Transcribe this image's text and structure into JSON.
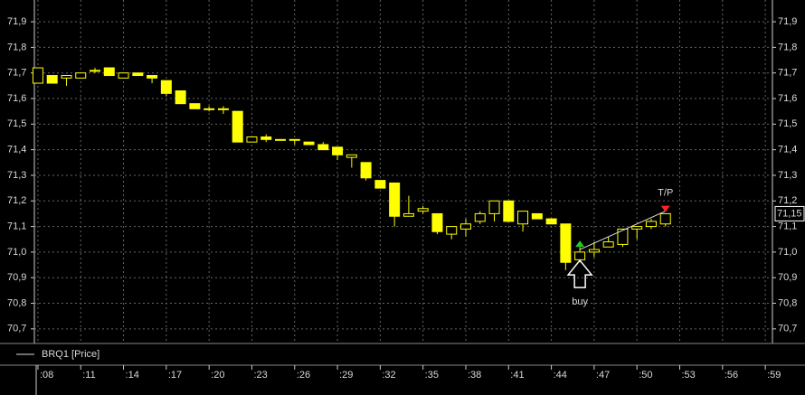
{
  "chart_data": {
    "type": "candlestick",
    "legend": "BRQ1 [Price]",
    "x": [
      8,
      9,
      10,
      11,
      12,
      13,
      14,
      15,
      16,
      17,
      18,
      19,
      20,
      21,
      22,
      23,
      24,
      25,
      26,
      27,
      28,
      29,
      30,
      31,
      32,
      33,
      34,
      35,
      36,
      37,
      38,
      39,
      40,
      41,
      42,
      43,
      44,
      45,
      46,
      47,
      48,
      49,
      50,
      51,
      52
    ],
    "open": [
      71.66,
      71.69,
      71.68,
      71.68,
      71.71,
      71.72,
      71.68,
      71.7,
      71.69,
      71.67,
      71.63,
      71.58,
      71.56,
      71.56,
      71.55,
      71.43,
      71.45,
      71.44,
      71.44,
      71.43,
      71.42,
      71.41,
      71.37,
      71.35,
      71.28,
      71.27,
      71.14,
      71.16,
      71.15,
      71.07,
      71.09,
      71.12,
      71.15,
      71.2,
      71.11,
      71.15,
      71.13,
      71.11,
      70.97,
      71.0,
      71.02,
      71.03,
      71.09,
      71.1,
      71.11
    ],
    "high": [
      71.72,
      71.69,
      71.69,
      71.7,
      71.72,
      71.72,
      71.7,
      71.7,
      71.69,
      71.67,
      71.63,
      71.58,
      71.57,
      71.57,
      71.55,
      71.45,
      71.46,
      71.44,
      71.44,
      71.43,
      71.43,
      71.41,
      71.38,
      71.35,
      71.28,
      71.27,
      71.22,
      71.18,
      71.15,
      71.1,
      71.13,
      71.16,
      71.2,
      71.2,
      71.16,
      71.15,
      71.13,
      71.11,
      71.02,
      71.04,
      71.06,
      71.09,
      71.1,
      71.13,
      71.15
    ],
    "low": [
      71.66,
      71.66,
      71.65,
      71.68,
      71.7,
      71.69,
      71.68,
      71.69,
      71.66,
      71.61,
      71.58,
      71.56,
      71.55,
      71.54,
      71.43,
      71.43,
      71.43,
      71.44,
      71.42,
      71.42,
      71.4,
      71.36,
      71.33,
      71.28,
      71.25,
      71.1,
      71.14,
      71.15,
      71.07,
      71.05,
      71.06,
      71.11,
      71.12,
      71.12,
      71.08,
      71.13,
      71.11,
      70.93,
      70.96,
      70.98,
      71.02,
      71.02,
      71.05,
      71.09,
      71.1
    ],
    "close": [
      71.72,
      71.66,
      71.69,
      71.7,
      71.71,
      71.69,
      71.7,
      71.69,
      71.68,
      71.62,
      71.58,
      71.56,
      71.56,
      71.56,
      71.43,
      71.45,
      71.44,
      71.44,
      71.44,
      71.42,
      71.4,
      71.38,
      71.38,
      71.29,
      71.25,
      71.14,
      71.15,
      71.17,
      71.08,
      71.1,
      71.11,
      71.15,
      71.2,
      71.12,
      71.16,
      71.13,
      71.11,
      70.96,
      71.0,
      71.01,
      71.04,
      71.09,
      71.1,
      71.12,
      71.15
    ],
    "bull_color": "#000000",
    "bear_color": "#ffff00",
    "outline_color": "#ffff00",
    "grid": true,
    "xlim": [
      7.75,
      59.5
    ],
    "xticks": [
      {
        "value": 8,
        "label": ":08"
      },
      {
        "value": 11,
        "label": ":11"
      },
      {
        "value": 14,
        "label": ":14"
      },
      {
        "value": 17,
        "label": ":17"
      },
      {
        "value": 20,
        "label": ":20"
      },
      {
        "value": 23,
        "label": ":23"
      },
      {
        "value": 26,
        "label": ":26"
      },
      {
        "value": 29,
        "label": ":29"
      },
      {
        "value": 32,
        "label": ":32"
      },
      {
        "value": 35,
        "label": ":35"
      },
      {
        "value": 38,
        "label": ":38"
      },
      {
        "value": 41,
        "label": ":41"
      },
      {
        "value": 44,
        "label": ":44"
      },
      {
        "value": 47,
        "label": ":47"
      },
      {
        "value": 50,
        "label": ":50"
      },
      {
        "value": 53,
        "label": ":53"
      },
      {
        "value": 56,
        "label": ":56"
      },
      {
        "value": 59,
        "label": ":59"
      }
    ],
    "ylim": [
      70.65,
      71.985
    ],
    "yticks": [
      {
        "value": 71.9,
        "label": "71,9"
      },
      {
        "value": 71.8,
        "label": "71,8"
      },
      {
        "value": 71.7,
        "label": "71,7"
      },
      {
        "value": 71.6,
        "label": "71,6"
      },
      {
        "value": 71.5,
        "label": "71,5"
      },
      {
        "value": 71.4,
        "label": "71,4"
      },
      {
        "value": 71.3,
        "label": "71,3"
      },
      {
        "value": 71.2,
        "label": "71,2"
      },
      {
        "value": 71.1,
        "label": "71,1"
      },
      {
        "value": 71.0,
        "label": "71,0"
      },
      {
        "value": 70.9,
        "label": "70,9"
      },
      {
        "value": 70.8,
        "label": "70,8"
      },
      {
        "value": 70.7,
        "label": "70,7"
      }
    ],
    "last_price": {
      "value": 71.15,
      "label": "71,15"
    },
    "markers": [
      {
        "label": "buy",
        "x": 46,
        "y": 71.01,
        "color": "#22cc22",
        "shape": "up"
      },
      {
        "label": "T/P",
        "x": 52,
        "y": 71.16,
        "color": "#ff2222",
        "shape": "down"
      }
    ]
  }
}
